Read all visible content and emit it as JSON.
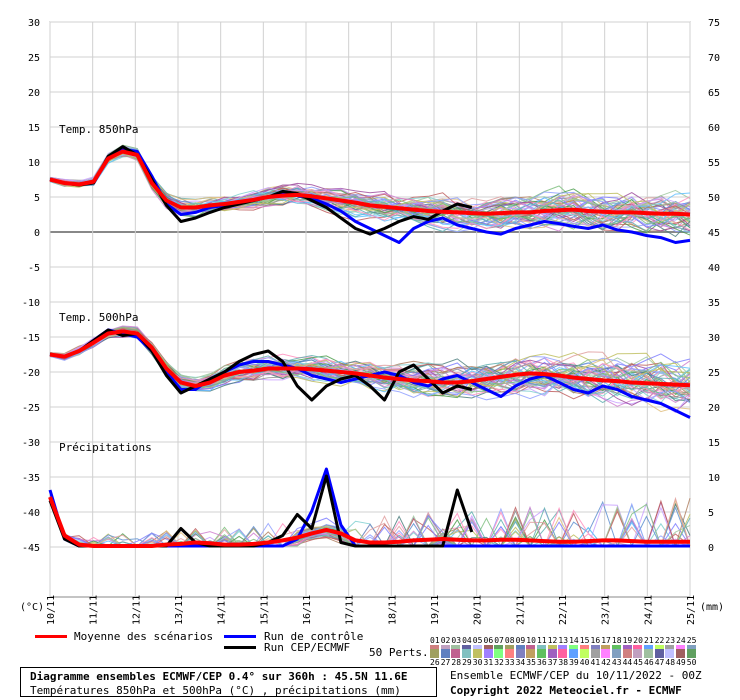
{
  "chart_data": {
    "type": "line",
    "title": "Diagramme ensembles ECMWF/CEP 0.4° sur 360h : 45.5N 11.6E",
    "subtitle": "Températures 850hPa et 500hPa (°C) , précipitations (mm)",
    "x_tick_labels": [
      "10/11",
      "11/11",
      "12/11",
      "13/11",
      "14/11",
      "15/11",
      "16/11",
      "17/11",
      "18/11",
      "19/11",
      "20/11",
      "21/11",
      "22/11",
      "23/11",
      "24/11",
      "25/11"
    ],
    "left_axis": {
      "unit_label": "(°C)",
      "ticks": [
        30,
        25,
        20,
        15,
        10,
        5,
        0,
        -5,
        -10,
        -15,
        -20,
        -25,
        -30,
        -35,
        -40,
        -45
      ],
      "range": [
        -45,
        30
      ]
    },
    "right_axis": {
      "unit_label": "(mm)",
      "ticks": [
        75,
        70,
        65,
        60,
        55,
        50,
        45,
        40,
        35,
        30,
        25,
        20,
        15,
        10,
        5,
        0
      ],
      "range": [
        0,
        75
      ]
    },
    "panels": [
      {
        "label": "Temp. 850hPa",
        "series": [
          {
            "name": "Moyenne des scénarios",
            "color": "#ff0000",
            "values": [
              7.5,
              7.0,
              6.8,
              7.2,
              10.5,
              11.5,
              11.0,
              7.0,
              4.5,
              3.5,
              3.5,
              3.8,
              4.0,
              4.3,
              4.6,
              5.0,
              5.2,
              5.3,
              5.1,
              4.8,
              4.5,
              4.2,
              3.8,
              3.6,
              3.4,
              3.2,
              3.0,
              2.9,
              2.8,
              2.7,
              2.6,
              2.7,
              2.8,
              2.8,
              3.0,
              3.1,
              3.2,
              3.0,
              2.9,
              2.8,
              2.8,
              2.7,
              2.6,
              2.6,
              2.5
            ]
          },
          {
            "name": "Run de contrôle",
            "color": "#0000ff",
            "values": [
              7.5,
              7.0,
              6.8,
              7.0,
              10.5,
              11.8,
              11.5,
              8.0,
              4.0,
              2.5,
              2.8,
              3.5,
              3.8,
              4.2,
              4.5,
              5.0,
              5.5,
              5.2,
              4.8,
              4.0,
              3.0,
              1.5,
              0.5,
              -0.5,
              -1.5,
              0.5,
              1.5,
              2.0,
              1.0,
              0.5,
              0.0,
              -0.3,
              0.5,
              1.0,
              1.5,
              1.2,
              0.8,
              0.5,
              1.0,
              0.3,
              0.0,
              -0.5,
              -0.8,
              -1.5,
              -1.2
            ]
          },
          {
            "name": "Run CEP/ECMWF",
            "color": "#000000",
            "values": [
              7.5,
              7.0,
              6.7,
              7.0,
              10.8,
              12.2,
              11.0,
              7.5,
              3.8,
              1.5,
              2.0,
              2.8,
              3.5,
              4.0,
              4.5,
              5.0,
              5.8,
              5.5,
              4.5,
              3.5,
              2.0,
              0.5,
              -0.3,
              0.5,
              1.5,
              2.2,
              1.8,
              3.0,
              4.0,
              3.5
            ]
          }
        ]
      },
      {
        "label": "Temp. 500hPa",
        "series": [
          {
            "name": "Moyenne des scénarios",
            "color": "#ff0000",
            "values": [
              -17.5,
              -17.8,
              -17.0,
              -15.8,
              -14.5,
              -14.2,
              -14.5,
              -16.5,
              -19.5,
              -21.5,
              -22.0,
              -21.5,
              -20.5,
              -20.0,
              -19.8,
              -19.5,
              -19.5,
              -19.5,
              -19.6,
              -19.8,
              -20.0,
              -20.2,
              -20.5,
              -20.8,
              -21.0,
              -21.2,
              -21.3,
              -21.5,
              -21.5,
              -21.3,
              -21.0,
              -20.7,
              -20.4,
              -20.2,
              -20.3,
              -20.5,
              -20.8,
              -21.0,
              -21.2,
              -21.3,
              -21.5,
              -21.6,
              -21.7,
              -21.8,
              -21.9
            ]
          },
          {
            "name": "Run de contrôle",
            "color": "#0000ff",
            "values": [
              -17.5,
              -17.8,
              -17.0,
              -15.5,
              -14.0,
              -14.5,
              -15.0,
              -17.0,
              -20.0,
              -22.5,
              -22.5,
              -21.0,
              -20.0,
              -19.0,
              -18.5,
              -18.5,
              -19.0,
              -19.5,
              -20.5,
              -21.0,
              -21.5,
              -21.0,
              -20.5,
              -20.0,
              -20.5,
              -21.5,
              -22.0,
              -21.0,
              -20.5,
              -21.5,
              -22.5,
              -23.5,
              -22.0,
              -21.0,
              -20.5,
              -21.5,
              -22.5,
              -23.0,
              -22.0,
              -22.5,
              -23.5,
              -24.0,
              -24.5,
              -25.5,
              -26.5
            ]
          },
          {
            "name": "Run CEP/ECMWF",
            "color": "#000000",
            "values": [
              -17.5,
              -17.8,
              -17.0,
              -15.5,
              -14.0,
              -14.8,
              -14.5,
              -17.0,
              -20.5,
              -23.0,
              -22.0,
              -21.0,
              -20.0,
              -18.5,
              -17.5,
              -17.0,
              -18.5,
              -22.0,
              -24.0,
              -22.0,
              -21.0,
              -20.5,
              -22.0,
              -24.0,
              -20.0,
              -19.0,
              -21.0,
              -23.0,
              -22.0,
              -22.5
            ]
          }
        ]
      },
      {
        "label": "Précipitations",
        "series": [
          {
            "name": "Moyenne des scénarios",
            "color": "#ff0000",
            "values": [
              7.0,
              1.5,
              0.2,
              0.0,
              0.0,
              0.0,
              0.0,
              0.0,
              0.2,
              0.3,
              0.5,
              0.4,
              0.2,
              0.2,
              0.3,
              0.5,
              0.8,
              1.2,
              1.8,
              2.3,
              1.8,
              0.8,
              0.5,
              0.5,
              0.6,
              0.8,
              0.9,
              1.0,
              0.9,
              0.8,
              0.8,
              0.9,
              0.9,
              0.8,
              0.7,
              0.6,
              0.6,
              0.7,
              0.8,
              0.8,
              0.7,
              0.6,
              0.6,
              0.6,
              0.6
            ]
          },
          {
            "name": "Run de contrôle",
            "color": "#0000ff",
            "values": [
              8.0,
              1.0,
              0.0,
              0.0,
              0.0,
              0.0,
              0.0,
              0.0,
              0.0,
              0.0,
              0.0,
              0.0,
              0.0,
              0.0,
              0.0,
              0.0,
              0.0,
              1.0,
              5.0,
              11.0,
              3.0,
              0.0,
              0.0,
              0.0,
              0.0,
              0.0,
              0.0,
              0.0,
              0.0,
              0.0,
              0.0,
              0.0,
              0.0,
              0.0,
              0.0,
              0.0,
              0.0,
              0.0,
              0.0,
              0.0,
              0.0,
              0.0,
              0.0,
              0.0,
              0.0
            ]
          },
          {
            "name": "Run CEP/ECMWF",
            "color": "#000000",
            "values": [
              6.5,
              1.0,
              0.0,
              0.0,
              0.0,
              0.0,
              0.0,
              0.0,
              0.0,
              2.5,
              0.5,
              0.0,
              0.0,
              0.0,
              0.0,
              0.5,
              1.5,
              4.5,
              2.5,
              10.0,
              0.5,
              0.0,
              0.0,
              0.0,
              0.0,
              0.0,
              0.0,
              0.0,
              8.0,
              2.0
            ]
          }
        ]
      }
    ],
    "grid": true
  },
  "legend": {
    "mean_label": "Moyenne des scénarios",
    "control_label": "Run de contrôle",
    "cep_label": "Run CEP/ECMWF",
    "perts_label": "50 Perts.",
    "colors": {
      "mean": "#ff0000",
      "control": "#0000ff",
      "cep": "#000000"
    }
  },
  "perts": {
    "row1": [
      "01",
      "02",
      "03",
      "04",
      "05",
      "06",
      "07",
      "08",
      "09",
      "10",
      "11",
      "12",
      "13",
      "14",
      "15",
      "16",
      "17",
      "18",
      "19",
      "20",
      "21",
      "22",
      "23",
      "24",
      "25"
    ],
    "row2": [
      "26",
      "27",
      "28",
      "29",
      "30",
      "31",
      "32",
      "33",
      "34",
      "35",
      "36",
      "37",
      "38",
      "39",
      "40",
      "41",
      "42",
      "43",
      "44",
      "45",
      "46",
      "47",
      "48",
      "49",
      "50"
    ]
  },
  "footer": {
    "title_line": "Diagramme ensembles ECMWF/CEP 0.4° sur 360h : 45.5N 11.6E",
    "subtitle_line": "Températures 850hPa et 500hPa (°C) , précipitations (mm)",
    "run_info": "Ensemble ECMWF/CEP du 10/11/2022 - 00Z",
    "copyright": "Copyright 2022 Meteociel.fr - ECMWF"
  }
}
